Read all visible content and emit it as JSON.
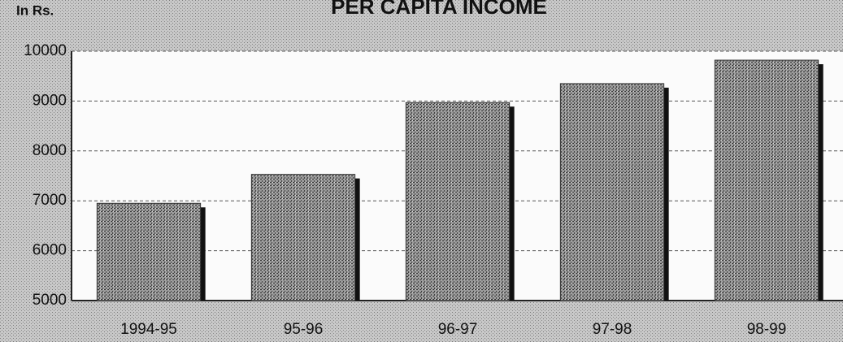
{
  "chart_data": {
    "type": "bar",
    "title": "PER CAPITA INCOME",
    "y_label": "In Rs.",
    "categories": [
      "1994-95",
      "95-96",
      "96-97",
      "97-98",
      "98-99"
    ],
    "values": [
      6950,
      7530,
      8970,
      9350,
      9820
    ],
    "color": "#8a8a8a",
    "ylim": [
      5000,
      10000
    ],
    "yticks": [
      5000,
      6000,
      7000,
      8000,
      9000,
      10000
    ],
    "grid": true
  }
}
